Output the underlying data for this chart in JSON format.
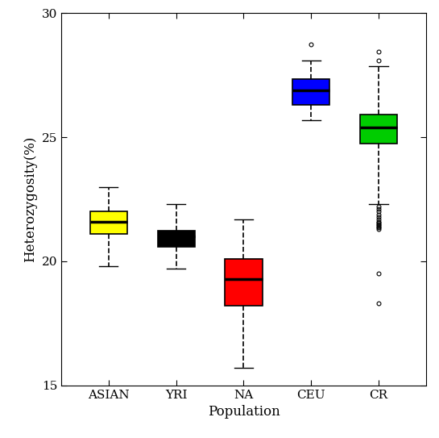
{
  "categories": [
    "ASIAN",
    "YRI",
    "NA",
    "CEU",
    "CR"
  ],
  "colors": [
    "#FFFF00",
    "#000000",
    "#FF0000",
    "#0000FF",
    "#00CC00"
  ],
  "xlabel": "Population",
  "ylabel": "Heterozygosity(%)",
  "ylim": [
    15,
    30
  ],
  "yticks": [
    15,
    20,
    25,
    30
  ],
  "boxes": {
    "ASIAN": {
      "q1": 21.1,
      "median": 21.6,
      "q3": 22.0,
      "whislo": 19.8,
      "whishi": 23.0,
      "fliers": []
    },
    "YRI": {
      "q1": 20.6,
      "median": 21.0,
      "q3": 21.25,
      "whislo": 19.7,
      "whishi": 22.3,
      "fliers": []
    },
    "NA": {
      "q1": 18.2,
      "median": 19.3,
      "q3": 20.1,
      "whislo": 15.7,
      "whishi": 21.7,
      "fliers": []
    },
    "CEU": {
      "q1": 26.3,
      "median": 26.9,
      "q3": 27.35,
      "whislo": 25.7,
      "whishi": 28.1,
      "fliers": [
        28.75
      ]
    },
    "CR": {
      "q1": 24.75,
      "median": 25.4,
      "q3": 25.9,
      "whislo": 22.3,
      "whishi": 27.85,
      "fliers": [
        28.45,
        28.1,
        22.2,
        22.1,
        22.0,
        21.9,
        21.8,
        21.7,
        21.6,
        21.55,
        21.5,
        21.45,
        21.4,
        21.35,
        21.3,
        19.5,
        18.3
      ]
    }
  },
  "box_width": 0.55,
  "linewidth": 1.2,
  "median_linewidth": 2.5,
  "figsize": [
    5.45,
    5.43
  ],
  "dpi": 100,
  "background": "white",
  "whisker_linestyle": "--",
  "cap_linewidth": 1.0,
  "flier_marker": "o",
  "flier_markersize": 3.5,
  "flier_markeredgewidth": 0.8
}
